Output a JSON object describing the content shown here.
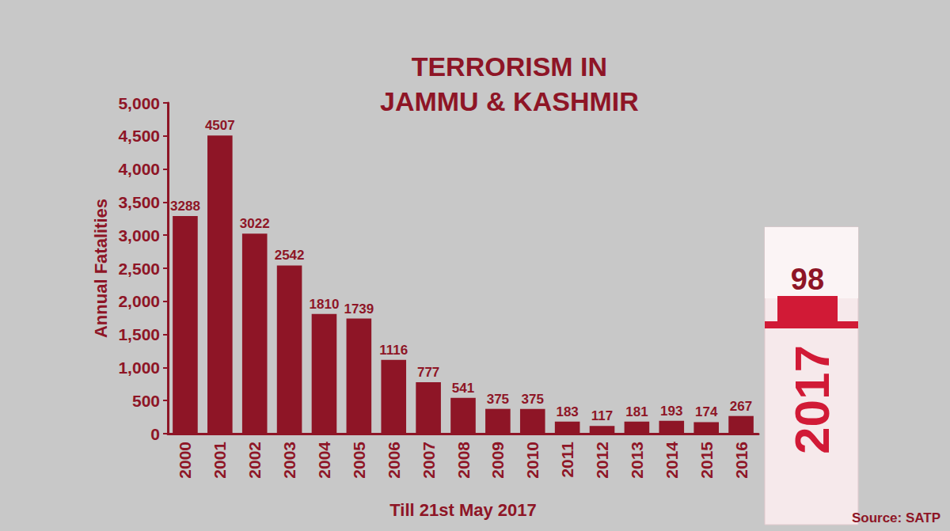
{
  "chart_data": {
    "type": "bar",
    "title": "TERRORISM IN\nJAMMU & KASHMIR",
    "y_label": "Annual Fatalities",
    "x_label": "Till 21st May 2017",
    "source": "Source: SATP",
    "categories": [
      "2000",
      "2001",
      "2002",
      "2003",
      "2004",
      "2005",
      "2006",
      "2007",
      "2008",
      "2009",
      "2010",
      "2011",
      "2012",
      "2013",
      "2014",
      "2015",
      "2016"
    ],
    "values": [
      3288,
      4507,
      3022,
      2542,
      1810,
      1739,
      1116,
      777,
      541,
      375,
      375,
      183,
      117,
      181,
      193,
      174,
      267
    ],
    "color": "#8e1526",
    "ylim": [
      0,
      5000
    ],
    "yticks": [
      0,
      500,
      1000,
      1500,
      2000,
      2500,
      3000,
      3500,
      4000,
      4500,
      5000
    ],
    "grid": false,
    "data_labels": true,
    "inset": {
      "category": "2017",
      "value": 98
    }
  }
}
